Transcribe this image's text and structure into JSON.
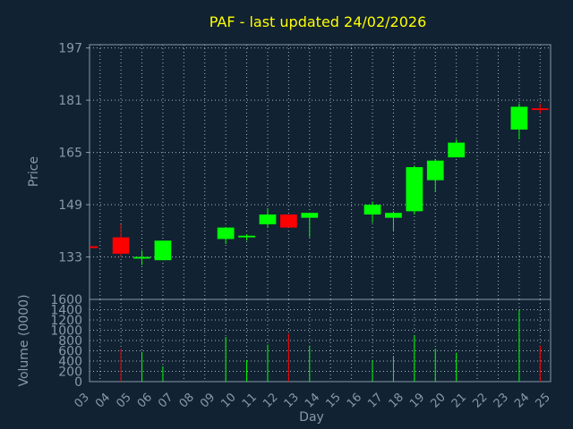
{
  "chart_data": {
    "type": "candlestick",
    "title": "PAF - last updated 24/02/2026",
    "xlabel": "Day",
    "ylabel_price": "Price",
    "ylabel_volume": "Volume (0000)",
    "x_ticks": [
      "03",
      "04",
      "05",
      "06",
      "07",
      "08",
      "09",
      "10",
      "11",
      "12",
      "13",
      "14",
      "15",
      "16",
      "17",
      "18",
      "19",
      "20",
      "21",
      "22",
      "23",
      "24",
      "25"
    ],
    "price_ticks": [
      133,
      149,
      165,
      181,
      197
    ],
    "price_range": [
      120,
      198
    ],
    "volume_ticks": [
      0,
      200,
      400,
      600,
      800,
      1000,
      1200,
      1400,
      1600
    ],
    "volume_range": [
      0,
      1600
    ],
    "grid": true,
    "colors": {
      "background": "#112233",
      "frame": "#8899aa",
      "grid": "#aab4be",
      "title": "#ffff00",
      "labels": "#8899aa",
      "up": "#00ff00",
      "down": "#ff0000"
    },
    "candles": [
      {
        "day": "03",
        "open": 136,
        "high": 136,
        "low": 136,
        "close": 136
      },
      {
        "day": "04",
        "open": 139,
        "high": 143,
        "low": 133,
        "close": 134
      },
      {
        "day": "05",
        "open": 132.5,
        "high": 135,
        "low": 130.5,
        "close": 133
      },
      {
        "day": "06",
        "open": 132,
        "high": 138,
        "low": 132,
        "close": 138
      },
      {
        "day": "09",
        "open": 138.5,
        "high": 142,
        "low": 137,
        "close": 142
      },
      {
        "day": "10",
        "open": 139,
        "high": 140,
        "low": 138,
        "close": 139.5
      },
      {
        "day": "11",
        "open": 143,
        "high": 148,
        "low": 142,
        "close": 146
      },
      {
        "day": "12",
        "open": 146,
        "high": 146,
        "low": 142,
        "close": 142
      },
      {
        "day": "13",
        "open": 145,
        "high": 146.5,
        "low": 139,
        "close": 146.5
      },
      {
        "day": "16",
        "open": 146,
        "high": 150,
        "low": 143.5,
        "close": 149
      },
      {
        "day": "17",
        "open": 145,
        "high": 147,
        "low": 141,
        "close": 146.5
      },
      {
        "day": "18",
        "open": 147,
        "high": 161,
        "low": 146,
        "close": 160.5
      },
      {
        "day": "19",
        "open": 156.5,
        "high": 163,
        "low": 153,
        "close": 162.5
      },
      {
        "day": "20",
        "open": 163.5,
        "high": 169,
        "low": 163.5,
        "close": 168
      },
      {
        "day": "23",
        "open": 172,
        "high": 180,
        "low": 169,
        "close": 179
      },
      {
        "day": "24",
        "open": 178.5,
        "high": 180,
        "low": 177,
        "close": 178
      }
    ],
    "volume": [
      {
        "day": "04",
        "value": 640,
        "color": "down"
      },
      {
        "day": "05",
        "value": 580,
        "color": "up"
      },
      {
        "day": "06",
        "value": 300,
        "color": "up"
      },
      {
        "day": "09",
        "value": 870,
        "color": "up"
      },
      {
        "day": "10",
        "value": 420,
        "color": "up"
      },
      {
        "day": "11",
        "value": 720,
        "color": "up"
      },
      {
        "day": "12",
        "value": 930,
        "color": "down"
      },
      {
        "day": "13",
        "value": 700,
        "color": "up"
      },
      {
        "day": "16",
        "value": 420,
        "color": "up"
      },
      {
        "day": "17",
        "value": 500,
        "color": "up"
      },
      {
        "day": "18",
        "value": 900,
        "color": "up"
      },
      {
        "day": "19",
        "value": 640,
        "color": "up"
      },
      {
        "day": "20",
        "value": 560,
        "color": "up"
      },
      {
        "day": "23",
        "value": 1400,
        "color": "up"
      },
      {
        "day": "24",
        "value": 700,
        "color": "down"
      }
    ]
  }
}
